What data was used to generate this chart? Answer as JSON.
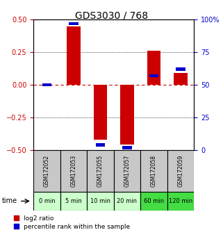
{
  "title": "GDS3030 / 768",
  "samples": [
    "GSM172052",
    "GSM172053",
    "GSM172055",
    "GSM172057",
    "GSM172058",
    "GSM172059"
  ],
  "time_labels": [
    "0 min",
    "5 min",
    "10 min",
    "20 min",
    "60 min",
    "120 min"
  ],
  "log2_ratios": [
    0.0,
    0.45,
    -0.42,
    -0.46,
    0.26,
    0.09
  ],
  "percentile_ranks": [
    50,
    97,
    4,
    2,
    57,
    62
  ],
  "ylim_left": [
    -0.5,
    0.5
  ],
  "ylim_right": [
    0,
    100
  ],
  "left_ticks": [
    -0.5,
    -0.25,
    0.0,
    0.25,
    0.5
  ],
  "right_ticks": [
    0,
    25,
    50,
    75,
    100
  ],
  "bar_color_red": "#cc0000",
  "bar_color_blue": "#0000cc",
  "grid_color": "#000000",
  "zero_line_color": "#cc0000",
  "sample_box_color": "#c8c8c8",
  "time_box_color_light": "#ccffcc",
  "time_box_color_dark": "#44dd44",
  "time_colors_idx": [
    0,
    0,
    0,
    0,
    1,
    1
  ],
  "bar_width": 0.5,
  "blue_bar_width": 0.35,
  "left_tick_color": "#cc0000",
  "right_tick_color": "#0000cc",
  "tick_fontsize": 7,
  "title_fontsize": 10,
  "sample_fontsize": 5.5,
  "time_fontsize": 6,
  "legend_fontsize": 6.5
}
